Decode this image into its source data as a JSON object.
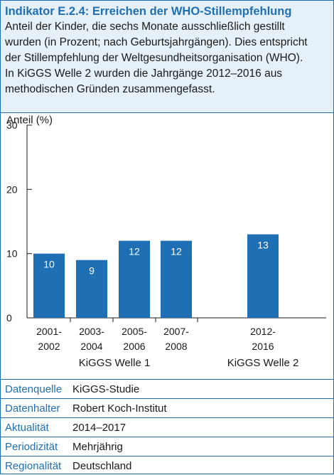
{
  "header": {
    "title": "Indikator E.2.4: Erreichen der WHO-Stillempfehlung",
    "description_lines": [
      "Anteil der Kinder, die sechs Monate ausschließlich gestillt",
      "wurden (in Prozent; nach Geburtsjahrgängen). Dies entspricht",
      "der Stillempfehlung der Weltgesundheitsorganisation (WHO).",
      "In KiGGS Welle 2 wurden die Jahrgänge 2012–2016 aus",
      "methodischen Gründen zusammengefasst."
    ]
  },
  "chart_data": {
    "type": "bar",
    "ylabel": "Anteil (%)",
    "ylim": [
      0,
      30
    ],
    "yticks": [
      "0",
      "10",
      "20",
      "30"
    ],
    "categories": [
      [
        "2001-",
        "2002"
      ],
      [
        "2003-",
        "2004"
      ],
      [
        "2005-",
        "2006"
      ],
      [
        "2007-",
        "2008"
      ],
      [
        "2012-",
        "2016"
      ]
    ],
    "values": [
      10,
      9,
      12,
      12,
      13
    ],
    "value_labels": [
      "10",
      "9",
      "12",
      "12",
      "13"
    ],
    "groups": [
      {
        "label": "KiGGS Welle 1",
        "members": [
          0,
          1,
          2,
          3
        ]
      },
      {
        "label": "KiGGS Welle 2",
        "members": [
          4
        ]
      }
    ],
    "bar_color": "#1f6fb5",
    "grid": false
  },
  "meta": [
    {
      "key": "Datenquelle",
      "value": "KiGGS-Studie"
    },
    {
      "key": "Datenhalter",
      "value": "Robert Koch-Institut"
    },
    {
      "key": "Aktualität",
      "value": "2014–2017"
    },
    {
      "key": "Periodizität",
      "value": "Mehrjährig"
    },
    {
      "key": "Regionalität",
      "value": "Deutschland"
    }
  ],
  "colors": {
    "accent": "#1f6fb5",
    "header_bg": "#e6f0f8"
  }
}
